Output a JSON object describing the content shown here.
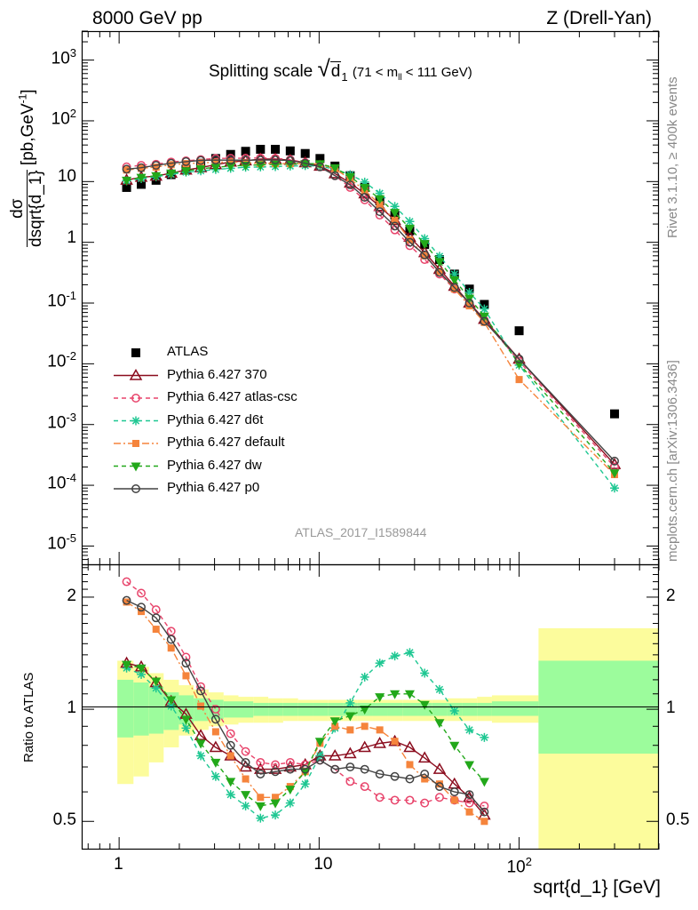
{
  "header": {
    "energy": "8000 GeV pp",
    "process": "Z (Drell-Yan)"
  },
  "side_labels": {
    "rivet": "Rivet 3.1.10, ≥ 400k events",
    "source": "mcplots.cern.ch [arXiv:1306.3436]"
  },
  "watermark": "ATLAS_2017_I1589844",
  "colors": {
    "ATLAS": "#000000",
    "p370": "#8b0c1e",
    "atlas_csc": "#e8446b",
    "d6t": "#1ec792",
    "default": "#f5843c",
    "dw": "#22a81a",
    "p0": "#424242",
    "band_outer": "#fcfc9c",
    "band_inner": "#9cfc9c"
  },
  "chart_data": [
    {
      "type": "scatter",
      "title": "Splitting scale √d₁ (71 < m_ll < 111 GeV)",
      "title_parts": {
        "main": "Splitting scale",
        "sym": "d",
        "sub": "1",
        "range": "(71 < m",
        "range_sub": "ll",
        "range_end": " < 111 GeV)"
      },
      "ylabel": "dσ / dsqrt{d_1} [pb,GeV⁻¹]",
      "ylabel_parts": {
        "num": "dσ",
        "den": "dsqrt{d_1}",
        "unit": "[pb,GeV",
        "unit_sup": "-1",
        "unit_end": "]"
      },
      "xlabel": "sqrt{d_1} [GeV]",
      "x_scale": "log",
      "y_scale": "log",
      "xlim": [
        0.65,
        500
      ],
      "ylim": [
        5e-06,
        3000
      ],
      "y_ticks": [
        {
          "v": 1000,
          "label": "10^3"
        },
        {
          "v": 100,
          "label": "10^2"
        },
        {
          "v": 10,
          "label": "10"
        },
        {
          "v": 1,
          "label": "1"
        },
        {
          "v": 0.1,
          "label": "10^-1"
        },
        {
          "v": 0.01,
          "label": "10^-2"
        },
        {
          "v": 0.001,
          "label": "10^-3"
        },
        {
          "v": 0.0001,
          "label": "10^-4"
        },
        {
          "v": 1e-05,
          "label": "10^-5"
        }
      ],
      "x": [
        1.09,
        1.29,
        1.53,
        1.82,
        2.16,
        2.56,
        3.04,
        3.61,
        4.29,
        5.09,
        6.04,
        7.17,
        8.52,
        10.1,
        12.0,
        14.3,
        16.9,
        20.1,
        23.9,
        28.4,
        33.7,
        40.0,
        47.5,
        56.4,
        67.0,
        100,
        300
      ],
      "legend": "left, below the curves",
      "series": [
        {
          "name": "ATLAS",
          "key": "ATLAS",
          "marker": "square",
          "y": [
            8,
            9,
            10.5,
            13,
            16,
            20,
            24,
            28,
            31.5,
            34,
            34,
            32,
            29,
            24,
            18,
            12.5,
            8,
            4.8,
            2.8,
            1.55,
            0.92,
            0.52,
            0.3,
            0.17,
            0.095,
            0.035,
            0.0015
          ]
        },
        {
          "name": "Pythia 6.427 370",
          "key": "p370",
          "marker": "open-triangle",
          "dash": "",
          "y": [
            10.6,
            11.8,
            12.3,
            13.8,
            15.5,
            17,
            19,
            21,
            22,
            23.5,
            23.5,
            22.5,
            20.5,
            18,
            13.5,
            9.5,
            6.3,
            3.9,
            2.3,
            1.22,
            0.68,
            0.36,
            0.19,
            0.1,
            0.054,
            0.012,
            0.00022
          ]
        },
        {
          "name": "Pythia 6.427 atlas-csc",
          "key": "atlas_csc",
          "marker": "open-circle",
          "dash": "5,4",
          "y": [
            17.5,
            18.5,
            19.3,
            21,
            22,
            23,
            24,
            24.2,
            24.3,
            24.5,
            24.2,
            23,
            20.5,
            17.5,
            12.5,
            8,
            5,
            2.8,
            1.6,
            0.88,
            0.52,
            0.3,
            0.17,
            0.095,
            0.052,
            0.011,
            0.0002
          ]
        },
        {
          "name": "Pythia 6.427 d6t",
          "key": "d6t",
          "marker": "star",
          "dash": "5,4",
          "y": [
            10.3,
            11.2,
            12,
            13.2,
            14.3,
            15,
            15.8,
            16.5,
            17.2,
            17.4,
            17.6,
            18,
            18.3,
            18,
            16,
            13,
            9.8,
            6.4,
            3.9,
            2.2,
            1.15,
            0.59,
            0.3,
            0.15,
            0.08,
            0.0095,
            9e-05
          ]
        },
        {
          "name": "Pythia 6.427 default",
          "key": "default",
          "marker": "filled-square",
          "dash": "8,3,2,3",
          "y": [
            15.5,
            16.5,
            17.3,
            19,
            19.7,
            20.4,
            20.8,
            21,
            20.5,
            19.8,
            19.8,
            19.7,
            19.8,
            19.5,
            16.2,
            11,
            7.2,
            4.2,
            2.3,
            1.1,
            0.6,
            0.33,
            0.17,
            0.09,
            0.048,
            0.0055,
            0.00015
          ]
        },
        {
          "name": "Pythia 6.427 dw",
          "key": "dw",
          "marker": "down-triangle",
          "dash": "5,4",
          "y": [
            10.5,
            11.7,
            12.5,
            13.8,
            15,
            16.2,
            17.2,
            18,
            18.5,
            18.8,
            19.2,
            19.5,
            19.7,
            19.6,
            16.8,
            12,
            8,
            5.2,
            3.1,
            1.7,
            0.95,
            0.48,
            0.24,
            0.12,
            0.061,
            0.01,
            0.00016
          ]
        },
        {
          "name": "Pythia 6.427 p0",
          "key": "p0",
          "marker": "open-circle",
          "dash": "",
          "y": [
            16,
            16.9,
            18.5,
            20,
            21.3,
            22.3,
            22.6,
            22.5,
            22.5,
            22.6,
            22.7,
            22.2,
            20,
            17.5,
            12.5,
            8.8,
            5.5,
            3.2,
            1.85,
            1,
            0.62,
            0.32,
            0.18,
            0.1,
            0.05,
            0.012,
            0.00025
          ]
        }
      ]
    },
    {
      "type": "scatter",
      "title": "",
      "ylabel": "Ratio to ATLAS",
      "xlabel": "sqrt{d_1} [GeV]",
      "x_scale": "log",
      "y_scale": "log",
      "xlim": [
        0.65,
        500
      ],
      "ylim": [
        0.42,
        2.45
      ],
      "y_ticks": [
        {
          "v": 0.5,
          "label": "0.5"
        },
        {
          "v": 1,
          "label": "1"
        },
        {
          "v": 2,
          "label": "2"
        }
      ],
      "x_ticks": [
        {
          "v": 1,
          "label": "1"
        },
        {
          "v": 10,
          "label": "10"
        },
        {
          "v": 100,
          "label": "10^2"
        }
      ],
      "x": [
        1.09,
        1.29,
        1.53,
        1.82,
        2.16,
        2.56,
        3.04,
        3.61,
        4.29,
        5.09,
        6.04,
        7.17,
        8.52,
        10.1,
        12.0,
        14.3,
        16.9,
        20.1,
        23.9,
        28.4,
        33.7,
        40.0,
        47.5,
        56.4,
        67.0
      ],
      "bands": {
        "edges": [
          0.98,
          1.18,
          1.41,
          1.67,
          1.99,
          2.36,
          2.8,
          3.33,
          3.95,
          4.69,
          5.57,
          6.61,
          7.85,
          9.32,
          11.07,
          13.15,
          15.6,
          18.5,
          22.0,
          26.1,
          31.0,
          36.8,
          43.7,
          51.9,
          61.6,
          73.1,
          125,
          500
        ],
        "outer_lo": [
          0.63,
          0.66,
          0.72,
          0.79,
          0.85,
          0.88,
          0.9,
          0.91,
          0.92,
          0.92,
          0.92,
          0.93,
          0.93,
          0.93,
          0.93,
          0.93,
          0.93,
          0.93,
          0.93,
          0.93,
          0.93,
          0.93,
          0.93,
          0.93,
          0.93,
          0.92,
          0.4
        ],
        "outer_hi": [
          1.35,
          1.3,
          1.25,
          1.2,
          1.16,
          1.13,
          1.11,
          1.09,
          1.08,
          1.08,
          1.07,
          1.07,
          1.06,
          1.06,
          1.06,
          1.06,
          1.06,
          1.06,
          1.06,
          1.06,
          1.06,
          1.06,
          1.07,
          1.07,
          1.08,
          1.09,
          1.65
        ],
        "inner_lo": [
          0.84,
          0.85,
          0.86,
          0.88,
          0.91,
          0.93,
          0.94,
          0.95,
          0.95,
          0.96,
          0.96,
          0.96,
          0.96,
          0.96,
          0.96,
          0.96,
          0.96,
          0.96,
          0.96,
          0.96,
          0.96,
          0.96,
          0.96,
          0.96,
          0.96,
          0.96,
          0.76
        ],
        "inner_hi": [
          1.2,
          1.18,
          1.15,
          1.11,
          1.09,
          1.07,
          1.06,
          1.05,
          1.05,
          1.04,
          1.04,
          1.04,
          1.04,
          1.04,
          1.04,
          1.04,
          1.04,
          1.04,
          1.04,
          1.04,
          1.04,
          1.04,
          1.04,
          1.04,
          1.04,
          1.05,
          1.35
        ]
      },
      "series": [
        {
          "name": "Pythia 6.427 370",
          "key": "p370",
          "marker": "open-triangle",
          "dash": "",
          "y": [
            1.33,
            1.3,
            1.18,
            1.05,
            0.97,
            0.85,
            0.79,
            0.75,
            0.7,
            0.69,
            0.69,
            0.7,
            0.71,
            0.75,
            0.75,
            0.76,
            0.79,
            0.81,
            0.82,
            0.79,
            0.74,
            0.69,
            0.63,
            0.58,
            0.52
          ]
        },
        {
          "name": "Pythia 6.427 atlas-csc",
          "key": "atlas_csc",
          "marker": "open-circle",
          "dash": "5,4",
          "y": [
            2.2,
            2.05,
            1.85,
            1.62,
            1.38,
            1.15,
            1.0,
            0.86,
            0.77,
            0.72,
            0.71,
            0.72,
            0.71,
            0.73,
            0.69,
            0.64,
            0.62,
            0.58,
            0.57,
            0.57,
            0.56,
            0.58,
            0.57,
            0.56,
            0.55
          ]
        },
        {
          "name": "Pythia 6.427 d6t",
          "key": "d6t",
          "marker": "star",
          "dash": "5,4",
          "y": [
            1.29,
            1.24,
            1.14,
            1.02,
            0.89,
            0.75,
            0.66,
            0.59,
            0.55,
            0.51,
            0.52,
            0.56,
            0.63,
            0.75,
            0.89,
            1.04,
            1.22,
            1.33,
            1.39,
            1.42,
            1.25,
            1.13,
            0.99,
            0.88,
            0.84
          ]
        },
        {
          "name": "Pythia 6.427 default",
          "key": "default",
          "marker": "filled-square",
          "dash": "8,3,2,3",
          "y": [
            1.94,
            1.83,
            1.64,
            1.46,
            1.23,
            1.02,
            0.87,
            0.75,
            0.65,
            0.58,
            0.58,
            0.62,
            0.68,
            0.81,
            0.9,
            0.88,
            0.9,
            0.88,
            0.82,
            0.71,
            0.65,
            0.63,
            0.57,
            0.53,
            0.5
          ]
        },
        {
          "name": "Pythia 6.427 dw",
          "key": "dw",
          "marker": "down-triangle",
          "dash": "5,4",
          "y": [
            1.32,
            1.29,
            1.19,
            1.06,
            0.94,
            0.81,
            0.72,
            0.64,
            0.59,
            0.55,
            0.56,
            0.61,
            0.68,
            0.82,
            0.93,
            0.96,
            1.0,
            1.08,
            1.1,
            1.1,
            1.03,
            0.92,
            0.8,
            0.71,
            0.64
          ]
        },
        {
          "name": "Pythia 6.427 p0",
          "key": "p0",
          "marker": "open-circle",
          "dash": "",
          "y": [
            1.96,
            1.88,
            1.76,
            1.54,
            1.33,
            1.12,
            0.94,
            0.8,
            0.72,
            0.67,
            0.68,
            0.69,
            0.69,
            0.73,
            0.69,
            0.7,
            0.69,
            0.67,
            0.66,
            0.65,
            0.67,
            0.62,
            0.6,
            0.59,
            0.53
          ]
        }
      ]
    }
  ]
}
